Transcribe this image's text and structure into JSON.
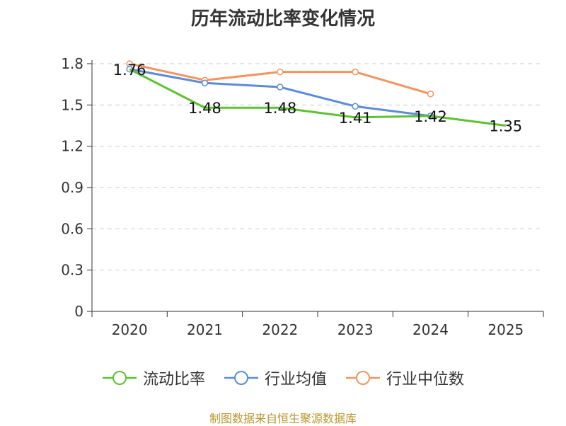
{
  "chart_data": {
    "type": "line",
    "title": "历年流动比率变化情况",
    "categories": [
      "2020",
      "2021",
      "2022",
      "2023",
      "2024",
      "2025"
    ],
    "ylim": [
      0,
      1.8
    ],
    "yticks": [
      "0",
      "0.3",
      "0.6",
      "0.9",
      "1.2",
      "1.5",
      "1.8"
    ],
    "grid": true,
    "legend_position": "bottom",
    "series": [
      {
        "name": "流动比率",
        "color": "#5cc230",
        "values": [
          1.76,
          1.48,
          1.48,
          1.41,
          1.42,
          1.35
        ],
        "labels": [
          "1.76",
          "1.48",
          "1.48",
          "1.41",
          "1.42",
          "1.35"
        ],
        "show_markers": false
      },
      {
        "name": "行业均值",
        "color": "#5b8bd9",
        "values": [
          1.76,
          1.66,
          1.63,
          1.49,
          1.42,
          null
        ],
        "show_markers": true
      },
      {
        "name": "行业中位数",
        "color": "#f39361",
        "values": [
          1.8,
          1.68,
          1.74,
          1.74,
          1.58,
          null
        ],
        "show_markers": true
      }
    ]
  },
  "footer": {
    "source": "制图数据来自恒生聚源数据库"
  }
}
